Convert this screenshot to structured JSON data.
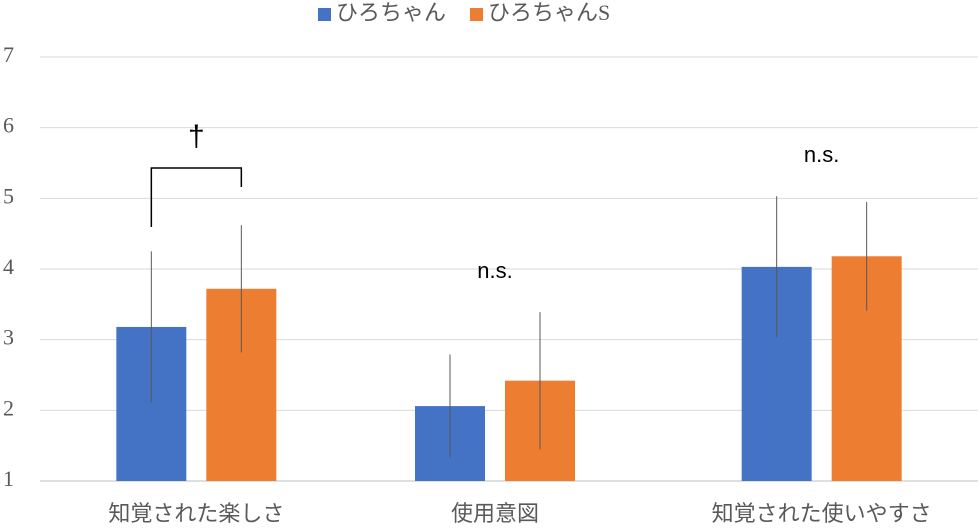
{
  "chart_data": {
    "type": "bar",
    "categories": [
      "知覚された楽しさ",
      "使用意図",
      "知覚された使いやすさ"
    ],
    "series": [
      {
        "name": "ひろちゃん",
        "color": "#4472c4",
        "values": [
          3.18,
          2.06,
          4.03
        ],
        "errors": [
          1.07,
          0.73,
          1.0
        ]
      },
      {
        "name": "ひろちゃんS",
        "color": "#ed7d31",
        "values": [
          3.72,
          2.42,
          4.18
        ],
        "errors": [
          0.9,
          0.97,
          0.77
        ]
      }
    ],
    "annotations": [
      "†",
      "n.s.",
      "n.s."
    ],
    "ylim": [
      1,
      7
    ],
    "yticks": [
      1,
      2,
      3,
      4,
      5,
      6,
      7
    ],
    "grid": true,
    "legend": "top"
  }
}
